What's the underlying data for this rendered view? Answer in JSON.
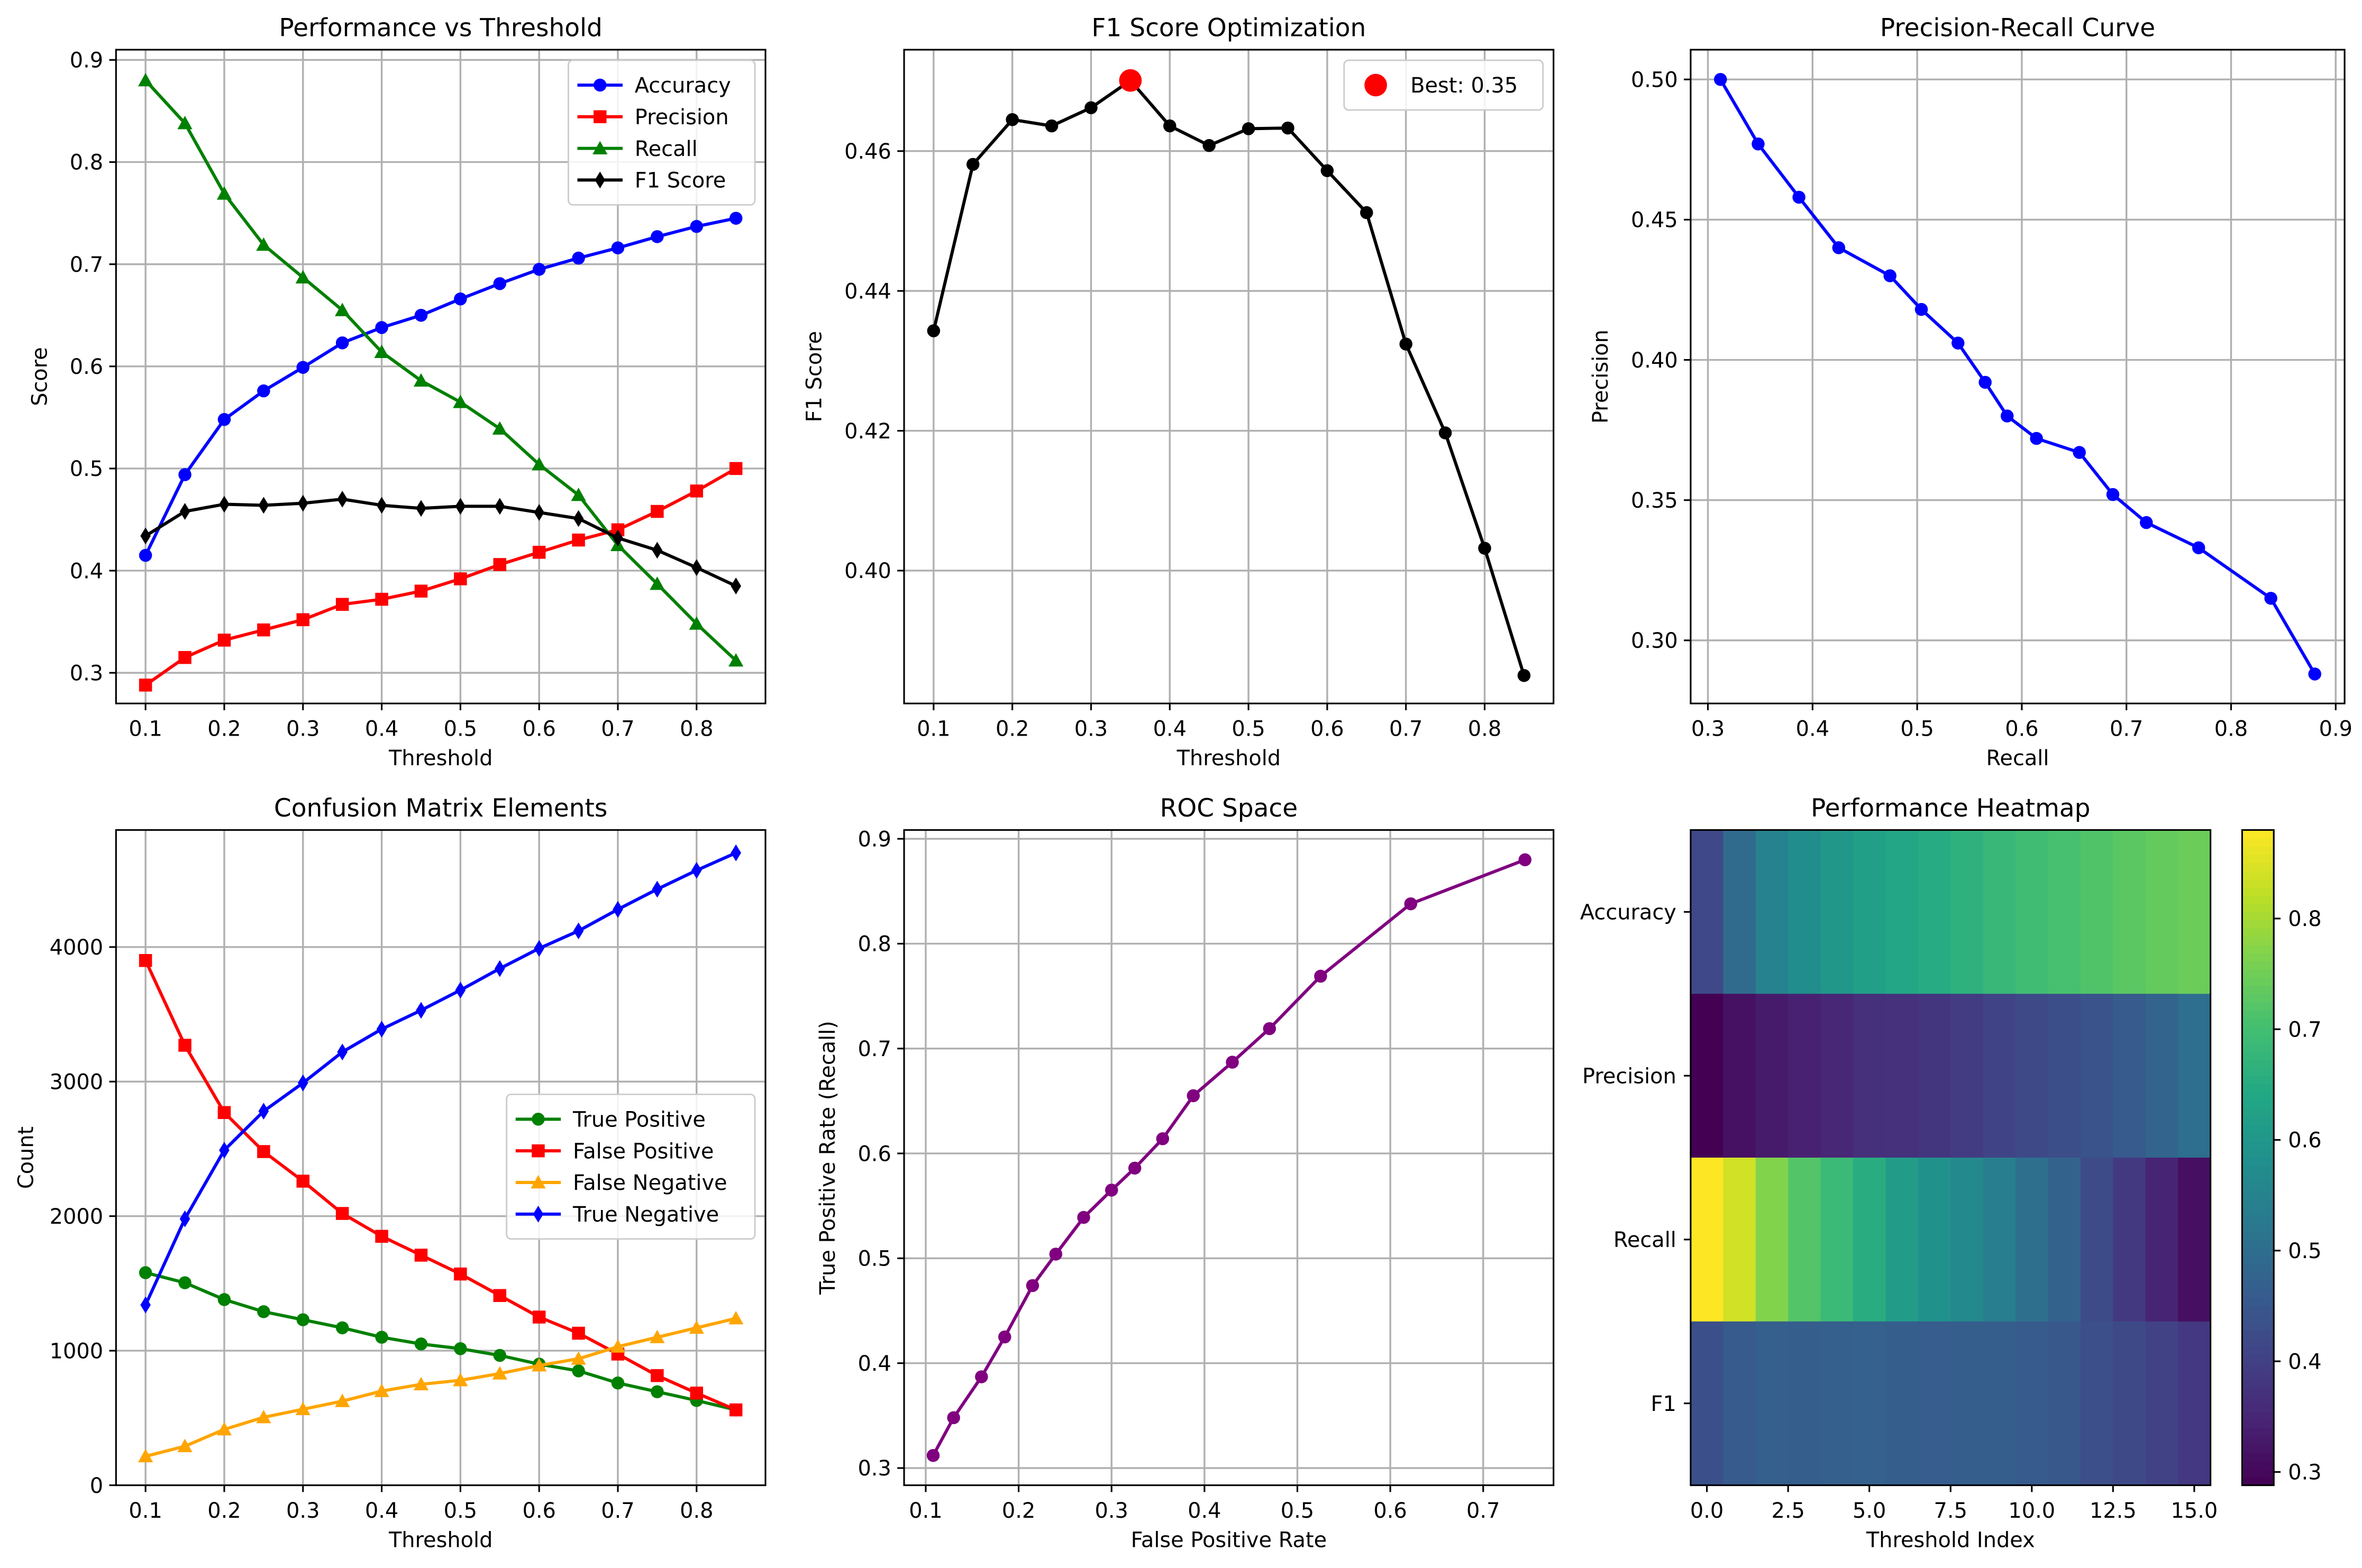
{
  "chart_data": [
    {
      "type": "line",
      "title": "Performance vs Threshold",
      "xlabel": "Threshold",
      "ylabel": "Score",
      "xlim": [
        0.0625,
        0.8875
      ],
      "ylim": [
        0.27,
        0.91
      ],
      "xticks": [
        0.1,
        0.2,
        0.3,
        0.4,
        0.5,
        0.6,
        0.7,
        0.8
      ],
      "yticks": [
        0.3,
        0.4,
        0.5,
        0.6,
        0.7,
        0.8,
        0.9
      ],
      "xtick_labels": [
        "0.1",
        "0.2",
        "0.3",
        "0.4",
        "0.5",
        "0.6",
        "0.7",
        "0.8"
      ],
      "ytick_labels": [
        "0.3",
        "0.4",
        "0.5",
        "0.6",
        "0.7",
        "0.8",
        "0.9"
      ],
      "grid": true,
      "legend_position": "top-right",
      "x": [
        0.1,
        0.15,
        0.2,
        0.25,
        0.3,
        0.35,
        0.4,
        0.45,
        0.5,
        0.55,
        0.6,
        0.65,
        0.7,
        0.75,
        0.8,
        0.85
      ],
      "series": [
        {
          "name": "Accuracy",
          "color": "#0000ff",
          "marker": "circle",
          "values": [
            0.415,
            0.494,
            0.548,
            0.576,
            0.599,
            0.623,
            0.638,
            0.65,
            0.666,
            0.681,
            0.695,
            0.706,
            0.716,
            0.727,
            0.737,
            0.745
          ]
        },
        {
          "name": "Precision",
          "color": "#ff0000",
          "marker": "square",
          "values": [
            0.288,
            0.315,
            0.332,
            0.342,
            0.352,
            0.367,
            0.372,
            0.38,
            0.392,
            0.406,
            0.418,
            0.43,
            0.44,
            0.458,
            0.478,
            0.5
          ]
        },
        {
          "name": "Recall",
          "color": "#008000",
          "marker": "triangle",
          "values": [
            0.88,
            0.838,
            0.769,
            0.719,
            0.687,
            0.655,
            0.614,
            0.586,
            0.565,
            0.539,
            0.504,
            0.474,
            0.425,
            0.387,
            0.348,
            0.312
          ]
        },
        {
          "name": "F1 Score",
          "color": "#000000",
          "marker": "diamond",
          "values": [
            0.434,
            0.458,
            0.465,
            0.464,
            0.466,
            0.47,
            0.464,
            0.461,
            0.463,
            0.463,
            0.457,
            0.451,
            0.432,
            0.42,
            0.403,
            0.385
          ]
        }
      ]
    },
    {
      "type": "line",
      "title": "F1 Score Optimization",
      "xlabel": "Threshold",
      "ylabel": "F1 Score",
      "xlim": [
        0.0625,
        0.8875
      ],
      "ylim": [
        0.381,
        0.4745
      ],
      "xticks": [
        0.1,
        0.2,
        0.3,
        0.4,
        0.5,
        0.6,
        0.7,
        0.8
      ],
      "yticks": [
        0.4,
        0.42,
        0.44,
        0.46
      ],
      "xtick_labels": [
        "0.1",
        "0.2",
        "0.3",
        "0.4",
        "0.5",
        "0.6",
        "0.7",
        "0.8"
      ],
      "ytick_labels": [
        "0.40",
        "0.42",
        "0.44",
        "0.46"
      ],
      "grid": true,
      "legend_position": "top-right",
      "x": [
        0.1,
        0.15,
        0.2,
        0.25,
        0.3,
        0.35,
        0.4,
        0.45,
        0.5,
        0.55,
        0.6,
        0.65,
        0.7,
        0.75,
        0.8,
        0.85
      ],
      "series": [
        {
          "name": "",
          "color": "#000000",
          "marker": "circle",
          "values": [
            0.4343,
            0.4581,
            0.4645,
            0.4636,
            0.4662,
            0.4701,
            0.4636,
            0.4608,
            0.4632,
            0.4633,
            0.4572,
            0.4512,
            0.4324,
            0.4197,
            0.4032,
            0.385
          ]
        }
      ],
      "highlight": {
        "name": "Best: 0.35",
        "x": 0.35,
        "y": 0.4701,
        "color": "#ff0000"
      }
    },
    {
      "type": "line",
      "title": "Precision-Recall Curve",
      "xlabel": "Recall",
      "ylabel": "Precision",
      "xlim": [
        0.2835,
        0.9085
      ],
      "ylim": [
        0.2775,
        0.5106
      ],
      "xticks": [
        0.3,
        0.4,
        0.5,
        0.6,
        0.7,
        0.8,
        0.9
      ],
      "yticks": [
        0.3,
        0.35,
        0.4,
        0.45,
        0.5
      ],
      "xtick_labels": [
        "0.3",
        "0.4",
        "0.5",
        "0.6",
        "0.7",
        "0.8",
        "0.9"
      ],
      "ytick_labels": [
        "0.30",
        "0.35",
        "0.40",
        "0.45",
        "0.50"
      ],
      "grid": true,
      "series": [
        {
          "name": "",
          "color": "#0000ff",
          "marker": "circle",
          "x": [
            0.312,
            0.348,
            0.387,
            0.425,
            0.474,
            0.504,
            0.539,
            0.565,
            0.586,
            0.614,
            0.655,
            0.687,
            0.719,
            0.769,
            0.838,
            0.88
          ],
          "values": [
            0.5,
            0.477,
            0.458,
            0.44,
            0.43,
            0.418,
            0.406,
            0.392,
            0.38,
            0.372,
            0.367,
            0.352,
            0.342,
            0.333,
            0.315,
            0.288
          ]
        }
      ]
    },
    {
      "type": "line",
      "title": "Confusion Matrix Elements",
      "xlabel": "Threshold",
      "ylabel": "Count",
      "xlim": [
        0.0625,
        0.8875
      ],
      "ylim": [
        0,
        4870
      ],
      "xticks": [
        0.1,
        0.2,
        0.3,
        0.4,
        0.5,
        0.6,
        0.7,
        0.8
      ],
      "yticks": [
        0,
        1000,
        2000,
        3000,
        4000
      ],
      "xtick_labels": [
        "0.1",
        "0.2",
        "0.3",
        "0.4",
        "0.5",
        "0.6",
        "0.7",
        "0.8"
      ],
      "ytick_labels": [
        "0",
        "1000",
        "2000",
        "3000",
        "4000"
      ],
      "grid": true,
      "legend_position": "center-right",
      "x": [
        0.1,
        0.15,
        0.2,
        0.25,
        0.3,
        0.35,
        0.4,
        0.45,
        0.5,
        0.55,
        0.6,
        0.65,
        0.7,
        0.75,
        0.8,
        0.85
      ],
      "series": [
        {
          "name": "True Positive",
          "color": "#008000",
          "marker": "circle",
          "values": [
            1580,
            1505,
            1380,
            1290,
            1230,
            1170,
            1100,
            1050,
            1015,
            965,
            900,
            850,
            760,
            695,
            630,
            560
          ]
        },
        {
          "name": "False Positive",
          "color": "#ff0000",
          "marker": "square",
          "values": [
            3900,
            3270,
            2770,
            2480,
            2260,
            2020,
            1850,
            1710,
            1570,
            1410,
            1250,
            1130,
            975,
            815,
            685,
            560
          ]
        },
        {
          "name": "False Negative",
          "color": "#ffa500",
          "marker": "triangle",
          "values": [
            215,
            290,
            415,
            505,
            565,
            625,
            700,
            750,
            780,
            830,
            890,
            940,
            1030,
            1100,
            1170,
            1240
          ]
        },
        {
          "name": "True Negative",
          "color": "#0000ff",
          "marker": "diamond",
          "values": [
            1340,
            1980,
            2490,
            2780,
            2990,
            3220,
            3390,
            3530,
            3680,
            3840,
            3990,
            4120,
            4280,
            4430,
            4570,
            4700
          ]
        }
      ]
    },
    {
      "type": "line",
      "title": "ROC Space",
      "xlabel": "False Positive Rate",
      "ylabel": "True Positive Rate (Recall)",
      "xlim": [
        0.0767,
        0.7757
      ],
      "ylim": [
        0.2836,
        0.9084
      ],
      "xticks": [
        0.1,
        0.2,
        0.3,
        0.4,
        0.5,
        0.6,
        0.7
      ],
      "yticks": [
        0.3,
        0.4,
        0.5,
        0.6,
        0.7,
        0.8,
        0.9
      ],
      "xtick_labels": [
        "0.1",
        "0.2",
        "0.3",
        "0.4",
        "0.5",
        "0.6",
        "0.7"
      ],
      "ytick_labels": [
        "0.3",
        "0.4",
        "0.5",
        "0.6",
        "0.7",
        "0.8",
        "0.9"
      ],
      "grid": true,
      "series": [
        {
          "name": "",
          "color": "#800080",
          "marker": "circle",
          "x": [
            0.745,
            0.622,
            0.525,
            0.47,
            0.43,
            0.388,
            0.355,
            0.325,
            0.3,
            0.27,
            0.24,
            0.215,
            0.185,
            0.16,
            0.13,
            0.108
          ],
          "values": [
            0.88,
            0.838,
            0.769,
            0.719,
            0.687,
            0.655,
            0.614,
            0.586,
            0.565,
            0.539,
            0.504,
            0.474,
            0.425,
            0.387,
            0.348,
            0.312
          ]
        }
      ]
    },
    {
      "type": "heatmap",
      "title": "Performance Heatmap",
      "xlabel": "Threshold Index",
      "ylabel": "",
      "xlim": [
        -0.5,
        15.5
      ],
      "xticks": [
        0,
        2.5,
        5,
        7.5,
        10,
        12.5,
        15
      ],
      "xtick_labels": [
        "0.0",
        "2.5",
        "5.0",
        "7.5",
        "10.0",
        "12.5",
        "15.0"
      ],
      "rows": [
        "Accuracy",
        "Precision",
        "Recall",
        "F1"
      ],
      "colormap": "viridis",
      "vmin": 0.288,
      "vmax": 0.88,
      "colorbar_ticks": [
        0.3,
        0.4,
        0.5,
        0.6,
        0.7,
        0.8
      ],
      "colorbar_tick_labels": [
        "0.3",
        "0.4",
        "0.5",
        "0.6",
        "0.7",
        "0.8"
      ],
      "values": [
        [
          0.415,
          0.494,
          0.548,
          0.576,
          0.599,
          0.623,
          0.638,
          0.65,
          0.666,
          0.681,
          0.695,
          0.706,
          0.716,
          0.727,
          0.737,
          0.745
        ],
        [
          0.288,
          0.315,
          0.332,
          0.342,
          0.352,
          0.367,
          0.372,
          0.38,
          0.392,
          0.406,
          0.418,
          0.43,
          0.44,
          0.458,
          0.478,
          0.5
        ],
        [
          0.88,
          0.838,
          0.769,
          0.719,
          0.687,
          0.655,
          0.614,
          0.586,
          0.565,
          0.539,
          0.504,
          0.474,
          0.425,
          0.387,
          0.348,
          0.312
        ],
        [
          0.434,
          0.458,
          0.465,
          0.464,
          0.466,
          0.47,
          0.464,
          0.461,
          0.463,
          0.463,
          0.457,
          0.451,
          0.432,
          0.42,
          0.403,
          0.385
        ]
      ]
    }
  ]
}
